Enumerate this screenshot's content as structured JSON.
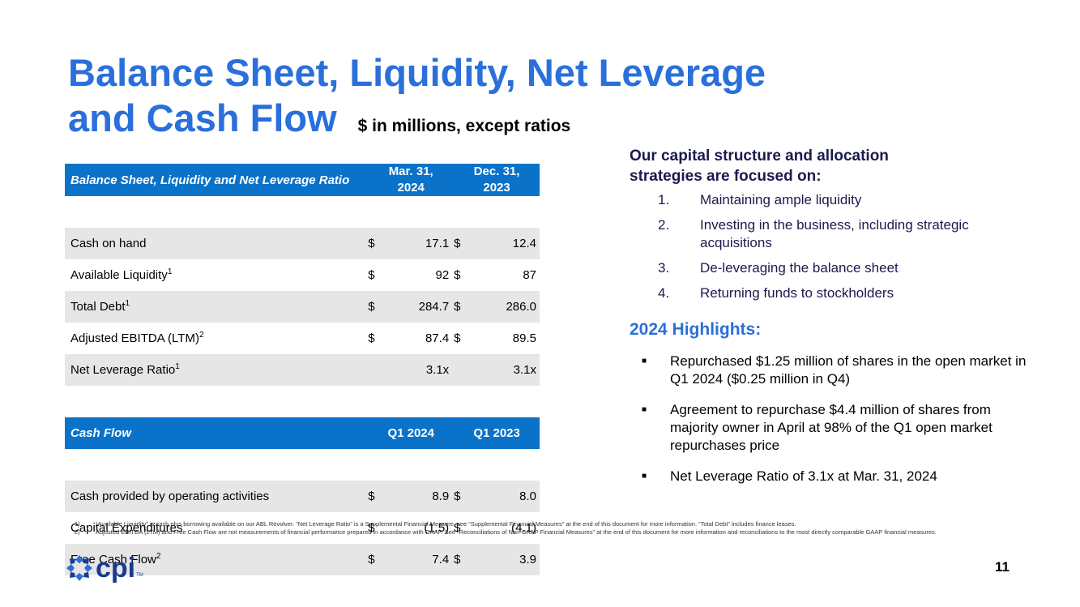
{
  "title": {
    "line1": "Balance Sheet, Liquidity, Net Leverage",
    "line2": "and Cash Flow",
    "subtitle": "$ in millions, except ratios"
  },
  "table": {
    "header": {
      "label": "Balance Sheet, Liquidity and Net Leverage Ratio",
      "col1": "Mar. 31, 2024",
      "col1_l1": "Mar. 31,",
      "col1_l2": "2024",
      "col2_l1": "Dec. 31,",
      "col2_l2": "2023"
    },
    "rows": [
      {
        "label": "Cash on hand",
        "sup": "",
        "cur1": "$",
        "v1": "17.1",
        "cur2": "$",
        "v2": "12.4"
      },
      {
        "label": "Available Liquidity",
        "sup": "1",
        "cur1": "$",
        "v1": "92",
        "cur2": "$",
        "v2": "87"
      },
      {
        "label": "Total Debt",
        "sup": "1",
        "cur1": "$",
        "v1": "284.7",
        "cur2": "$",
        "v2": "286.0"
      },
      {
        "label": "Adjusted EBITDA (LTM)",
        "sup": "2",
        "cur1": "$",
        "v1": "87.4",
        "cur2": "$",
        "v2": "89.5"
      },
      {
        "label": "Net Leverage Ratio",
        "sup": "1",
        "v1": "3.1x",
        "v2": "3.1x"
      }
    ],
    "cf_header": {
      "label": "Cash Flow",
      "col1": "Q1 2024",
      "col2": "Q1 2023"
    },
    "cf_rows": [
      {
        "label": "Cash provided by operating activities",
        "sup": "",
        "cur1": "$",
        "v1": "8.9",
        "cur2": "$",
        "v2": "8.0"
      },
      {
        "label": "Capital Expenditures",
        "sup": "",
        "cur1": "$",
        "v1": "(1.5)",
        "cur2": "$",
        "v2": "(4.1)"
      },
      {
        "label": "Free Cash Flow",
        "sup": "2",
        "cur1": "$",
        "v1": "7.4",
        "cur2": "$",
        "v2": "3.9"
      }
    ]
  },
  "focus": {
    "heading_l1": "Our capital structure and allocation",
    "heading_l2": "strategies are focused on:",
    "items": [
      {
        "num": "1.",
        "text": "Maintaining ample liquidity"
      },
      {
        "num": "2.",
        "text": "Investing in the business, including strategic acquisitions"
      },
      {
        "num": "3.",
        "text": "De-leveraging the balance sheet"
      },
      {
        "num": "4.",
        "text": "Returning funds to stockholders"
      }
    ]
  },
  "highlights": {
    "heading": "2024 Highlights:",
    "items": [
      "Repurchased $1.25 million of shares in the open market in Q1 2024 ($0.25 million in Q4)",
      "Agreement to repurchase $4.4 million of shares from majority owner in April at 98% of the Q1 open market repurchases price",
      "Net Leverage Ratio of 3.1x at Mar. 31, 2024"
    ]
  },
  "footnotes": [
    {
      "num": "1)",
      "text": "“Available Liquidity” is cash plus borrowing available on our ABL Revolver. “Net Leverage Ratio” is a Supplemental Financial Measure, see “Supplemental Financial Measures” at the end of this document for more information.  “Total Debt” includes finance leases."
    },
    {
      "num": "2)",
      "text": "Adjusted EBITDA (LTM) and Free Cash Flow are not measurements of financial performance prepared in accordance with GAAP. See “Reconciliations of Non-GAAP Financial Measures” at the end of this document for more information and reconciliations to the most directly comparable GAAP financial measures."
    }
  ],
  "logo": {
    "text": "cpi",
    "tm": "TM"
  },
  "page_number": "11",
  "colors": {
    "accent": "#2a6fdb",
    "table_header": "#0a72c9",
    "row_shade": "#e6e6e6",
    "navy": "#1a1a4e",
    "logo": "#1a3a8f"
  }
}
